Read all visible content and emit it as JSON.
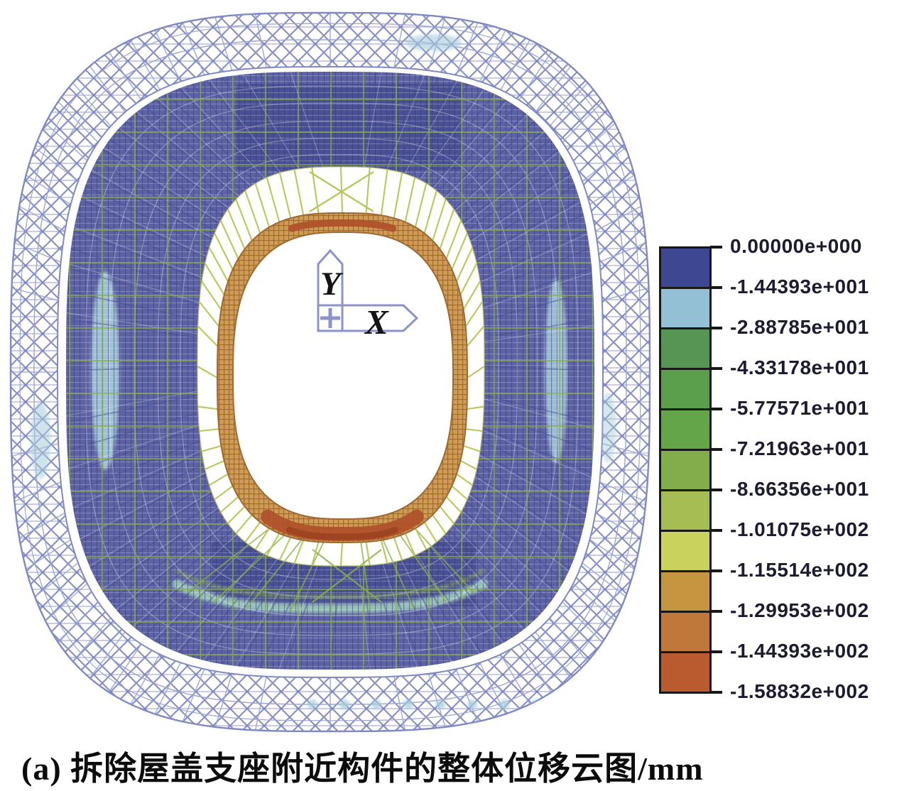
{
  "figure": {
    "caption": "(a) 拆除屋盖支座附近构件的整体位移云图/mm",
    "axis_triad": {
      "x_label": "X",
      "y_label": "Y"
    }
  },
  "legend": {
    "labels": [
      "0.00000e+000",
      "-1.44393e+001",
      "-2.88785e+001",
      "-4.33178e+001",
      "-5.77571e+001",
      "-7.21963e+001",
      "-8.66356e+001",
      "-1.01075e+002",
      "-1.15514e+002",
      "-1.29953e+002",
      "-1.44393e+002",
      "-1.58832e+002"
    ],
    "colors": [
      "#3e4791",
      "#93c0d5",
      "#569553",
      "#5b9e4b",
      "#64a54a",
      "#83ad4b",
      "#a5bd53",
      "#c8d25c",
      "#c6953f",
      "#c0773a",
      "#b95a2f"
    ],
    "border_color": "#181818"
  },
  "chart_data": {
    "type": "heatmap",
    "title": "(a) 拆除屋盖支座附近构件的整体位移云图/mm",
    "quantity": "整体位移",
    "units": "mm",
    "legend_position": "right",
    "levels": [
      0.0,
      -14.4393,
      -28.8785,
      -43.3178,
      -57.7571,
      -72.1963,
      -86.6356,
      -101.075,
      -115.514,
      -129.953,
      -144.393,
      -158.832
    ],
    "level_labels": [
      "0.00000e+000",
      "-1.44393e+001",
      "-2.88785e+001",
      "-4.33178e+001",
      "-5.77571e+001",
      "-7.21963e+001",
      "-8.66356e+001",
      "-1.01075e+002",
      "-1.15514e+002",
      "-1.29953e+002",
      "-1.44393e+002",
      "-1.58832e+002"
    ],
    "band_colors": [
      "#3e4791",
      "#93c0d5",
      "#569553",
      "#5b9e4b",
      "#64a54a",
      "#83ad4b",
      "#a5bd53",
      "#c8d25c",
      "#c6953f",
      "#c0773a",
      "#b95a2f"
    ],
    "annotations": [
      "Y",
      "X"
    ],
    "description": "FEA displacement contour of a stadium roof ring structure; outer ring near 0 mm (navy), inner tension ring near -158.8 mm (red-orange)"
  },
  "palette": {
    "outer_truss": "#9aa4d1",
    "truss_line": "#5d64a8",
    "roof_mesh": "#5c62a4",
    "mesh_dark": "#454b94",
    "panel_dark": "#494f93",
    "green_grid": "#8ab046",
    "fan": "#bac65b",
    "ring_fill": "#cf9c54",
    "ring_line": "#a06832",
    "hotspot": "#b0502a",
    "cyan_patch": "#a5ccd8",
    "cyan_arc": "#9ccdb6",
    "axis_outline": "#8d93c8"
  }
}
